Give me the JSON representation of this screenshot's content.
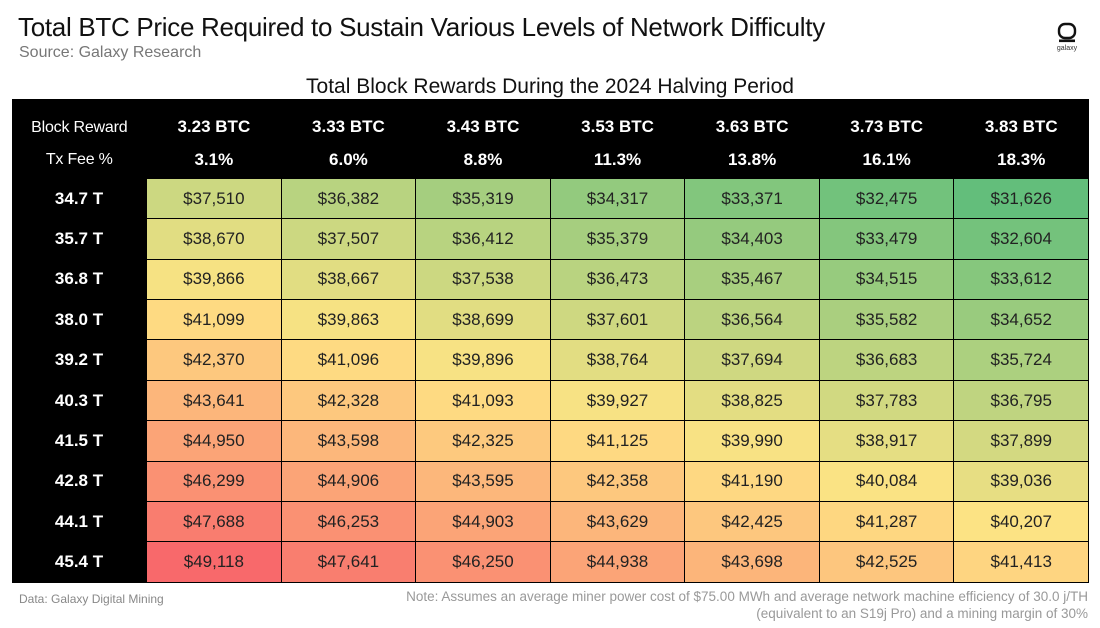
{
  "header": {
    "title": "Total BTC Price Required to Sustain Various Levels of Network Difficulty",
    "subtitle": "Source: Galaxy Research",
    "logo_text": "galaxy"
  },
  "chart_data": {
    "type": "table",
    "title": "Total Block Rewards During the 2024 Halving Period",
    "row_header_label_1": "Block Reward",
    "row_header_label_2": "Tx Fee %",
    "columns": [
      {
        "block_reward": "3.23 BTC",
        "tx_fee": "3.1%"
      },
      {
        "block_reward": "3.33 BTC",
        "tx_fee": "6.0%"
      },
      {
        "block_reward": "3.43 BTC",
        "tx_fee": "8.8%"
      },
      {
        "block_reward": "3.53 BTC",
        "tx_fee": "11.3%"
      },
      {
        "block_reward": "3.63 BTC",
        "tx_fee": "13.8%"
      },
      {
        "block_reward": "3.73 BTC",
        "tx_fee": "16.1%"
      },
      {
        "block_reward": "3.83 BTC",
        "tx_fee": "18.3%"
      }
    ],
    "rows": [
      {
        "difficulty": "34.7 T",
        "values": [
          "$37,510",
          "$36,382",
          "$35,319",
          "$34,317",
          "$33,371",
          "$32,475",
          "$31,626"
        ]
      },
      {
        "difficulty": "35.7 T",
        "values": [
          "$38,670",
          "$37,507",
          "$36,412",
          "$35,379",
          "$34,403",
          "$33,479",
          "$32,604"
        ]
      },
      {
        "difficulty": "36.8 T",
        "values": [
          "$39,866",
          "$38,667",
          "$37,538",
          "$36,473",
          "$35,467",
          "$34,515",
          "$33,612"
        ]
      },
      {
        "difficulty": "38.0 T",
        "values": [
          "$41,099",
          "$39,863",
          "$38,699",
          "$37,601",
          "$36,564",
          "$35,582",
          "$34,652"
        ]
      },
      {
        "difficulty": "39.2 T",
        "values": [
          "$42,370",
          "$41,096",
          "$39,896",
          "$38,764",
          "$37,694",
          "$36,683",
          "$35,724"
        ]
      },
      {
        "difficulty": "40.3 T",
        "values": [
          "$43,641",
          "$42,328",
          "$41,093",
          "$39,927",
          "$38,825",
          "$37,783",
          "$36,795"
        ]
      },
      {
        "difficulty": "41.5 T",
        "values": [
          "$44,950",
          "$43,598",
          "$42,325",
          "$41,125",
          "$39,990",
          "$38,917",
          "$37,899"
        ]
      },
      {
        "difficulty": "42.8 T",
        "values": [
          "$46,299",
          "$44,906",
          "$43,595",
          "$42,358",
          "$41,190",
          "$40,084",
          "$39,036"
        ]
      },
      {
        "difficulty": "44.1 T",
        "values": [
          "$47,688",
          "$46,253",
          "$44,903",
          "$43,629",
          "$42,425",
          "$41,287",
          "$40,207"
        ]
      },
      {
        "difficulty": "45.4 T",
        "values": [
          "$49,118",
          "$47,641",
          "$46,250",
          "$44,938",
          "$43,698",
          "$42,525",
          "$41,413"
        ]
      }
    ],
    "color_scale": {
      "low": "#63be7b",
      "mid": "#ffe484",
      "high": "#f8696b"
    }
  },
  "footer": {
    "left": "Data: Galaxy Digital Mining",
    "right_line1": "Note: Assumes an average miner power cost of $75.00 MWh and average network machine efficiency of 30.0 j/TH",
    "right_line2": "(equivalent to an S19j Pro) and a mining margin of 30%"
  }
}
